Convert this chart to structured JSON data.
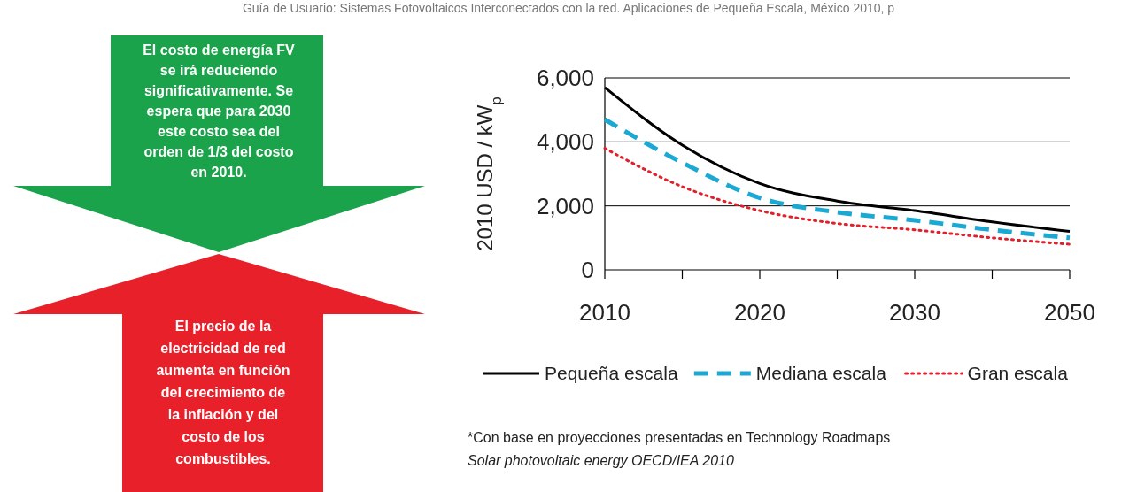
{
  "chart_data": {
    "type": "line",
    "ylabel": "2010 USD / kW$_{p}$",
    "categories": [
      "2010",
      null,
      "2020",
      null,
      "2030",
      null,
      "2050"
    ],
    "series": [
      {
        "name": "Pequeña escala",
        "color": "#000000",
        "line_style": "solid",
        "values": [
          5700,
          3900,
          2700,
          2150,
          1850,
          1500,
          1200
        ]
      },
      {
        "name": "Mediana escala",
        "color": "#1ba9d3",
        "line_style": "dashed",
        "values": [
          4700,
          3350,
          2250,
          1800,
          1550,
          1250,
          1000
        ]
      },
      {
        "name": "Gran escala",
        "color": "#e0202a",
        "line_style": "dotted",
        "values": [
          3800,
          2600,
          1850,
          1450,
          1250,
          1000,
          800
        ]
      }
    ],
    "ylim": [
      0,
      6000
    ],
    "yticks": [
      0,
      {
        "value": 2000,
        "label": "2,000"
      },
      {
        "value": 4000,
        "label": "4,000"
      },
      {
        "value": 6000,
        "label": "6,000"
      }
    ],
    "grid": "y",
    "legend": "bottom",
    "annotations": [
      "Guía de Usuario: Sistemas Fotovoltaicos Interconectados con la red. Aplicaciones de Pequeña Escala, México 2010, p",
      "El costo de energía FV se irá reduciendo significativamente. Se espera que para 2030 este costo sea del orden de 1/3 del costo en 2010.",
      "El precio de la electricidad de red aumenta en función del crecimiento de la inflación y del costo de los combustibles.",
      "*Con base en proyecciones presentadas en Technology Roadmaps Solar photovoltaic energy OECD/IEA 2010"
    ]
  }
}
